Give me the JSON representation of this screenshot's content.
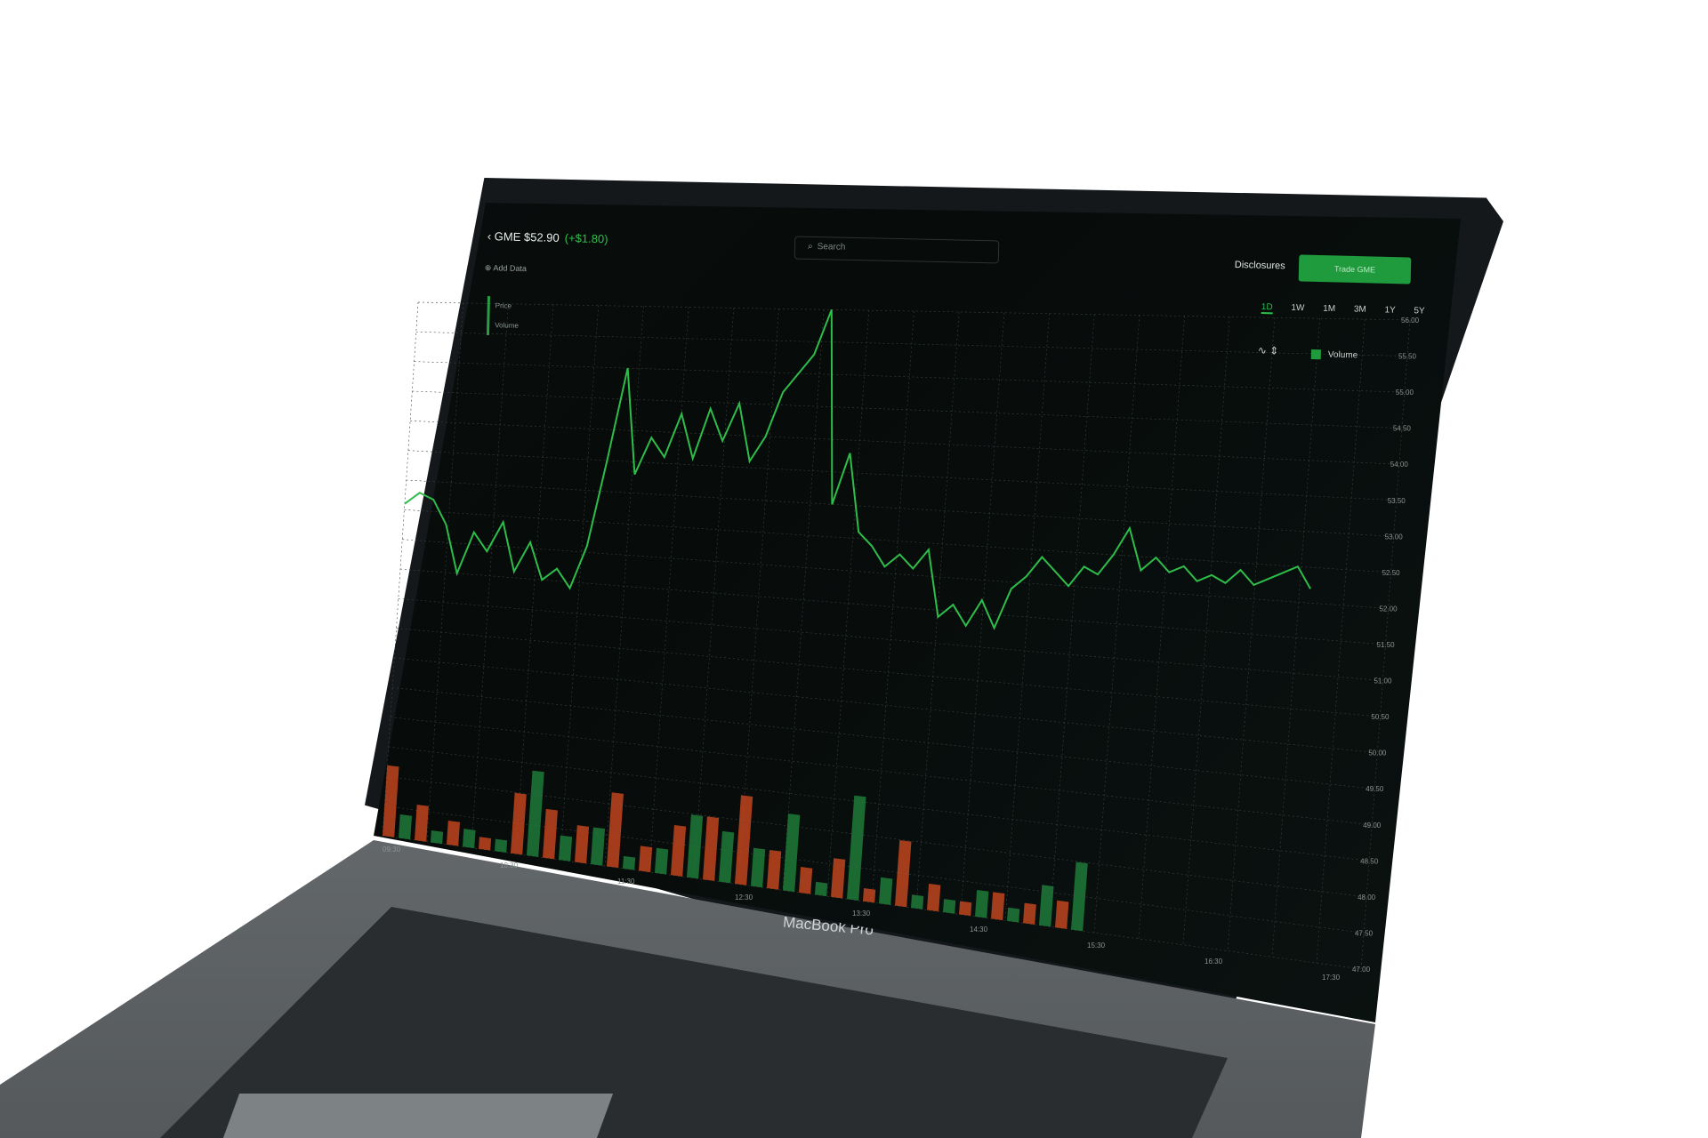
{
  "header": {
    "ticker": "GME $52.90",
    "change": "(+$1.80)",
    "add_data": "Add Data",
    "search_placeholder": "Search",
    "disclosures": "Disclosures",
    "trade_button": "Trade GME"
  },
  "legend": [
    "Price",
    "Volume"
  ],
  "ranges": [
    "1D",
    "1W",
    "1M",
    "3M",
    "1Y",
    "5Y"
  ],
  "active_range": "1D",
  "volume_toggle": "Volume",
  "laptop_brand": "MacBook Pro",
  "colors": {
    "price_line": "#2ebd4a",
    "volume_up": "#1f7a3a",
    "volume_down": "#c0451f",
    "grid": "#3a4442"
  },
  "chart_data": {
    "type": "line",
    "y_ticks": [
      "56.00",
      "55.50",
      "55.00",
      "54.50",
      "54.00",
      "53.50",
      "53.00",
      "52.50",
      "52.00",
      "51.50",
      "51.00",
      "50.50",
      "50.00",
      "49.50",
      "49.00",
      "48.50",
      "48.00",
      "47.50",
      "47.00"
    ],
    "x_ticks": [
      "09:30",
      "10:30",
      "11:30",
      "12:30",
      "13:30",
      "14:30",
      "15:30",
      "16:30",
      "17:30"
    ],
    "ylim": [
      47,
      56
    ],
    "price": [
      52.6,
      52.8,
      52.7,
      52.3,
      51.5,
      52.2,
      51.9,
      52.4,
      51.6,
      52.1,
      51.5,
      51.7,
      51.4,
      52.1,
      53.5,
      55.0,
      53.3,
      53.9,
      53.6,
      54.3,
      53.6,
      54.4,
      53.9,
      54.5,
      53.6,
      54.0,
      54.7,
      55.0,
      55.3,
      56.0,
      53.0,
      53.8,
      52.6,
      52.4,
      52.1,
      52.3,
      52.1,
      52.4,
      51.4,
      51.6,
      51.3,
      51.7,
      51.3,
      51.9,
      52.1,
      52.4,
      52.2,
      52.0,
      52.3,
      52.2,
      52.5,
      52.9,
      52.3,
      52.5,
      52.3,
      52.4,
      52.2,
      52.3,
      52.2,
      52.4,
      52.2,
      52.3,
      52.4,
      52.5,
      52.2
    ],
    "volume_up": [
      0.2,
      0.1,
      0.15,
      0.1,
      0.7,
      0.2,
      0.3,
      0.1,
      0.2,
      0.5,
      0.4,
      0.3,
      0.6,
      0.1,
      0.8,
      0.2,
      0.1,
      0.1,
      0.2,
      0.1,
      0.3,
      0.5
    ],
    "volume_down": [
      0.6,
      0.3,
      0.2,
      0.1,
      0.5,
      0.4,
      0.3,
      0.6,
      0.2,
      0.4,
      0.5,
      0.7,
      0.3,
      0.2,
      0.3,
      0.1,
      0.5,
      0.2,
      0.1,
      0.2,
      0.15,
      0.2
    ]
  }
}
